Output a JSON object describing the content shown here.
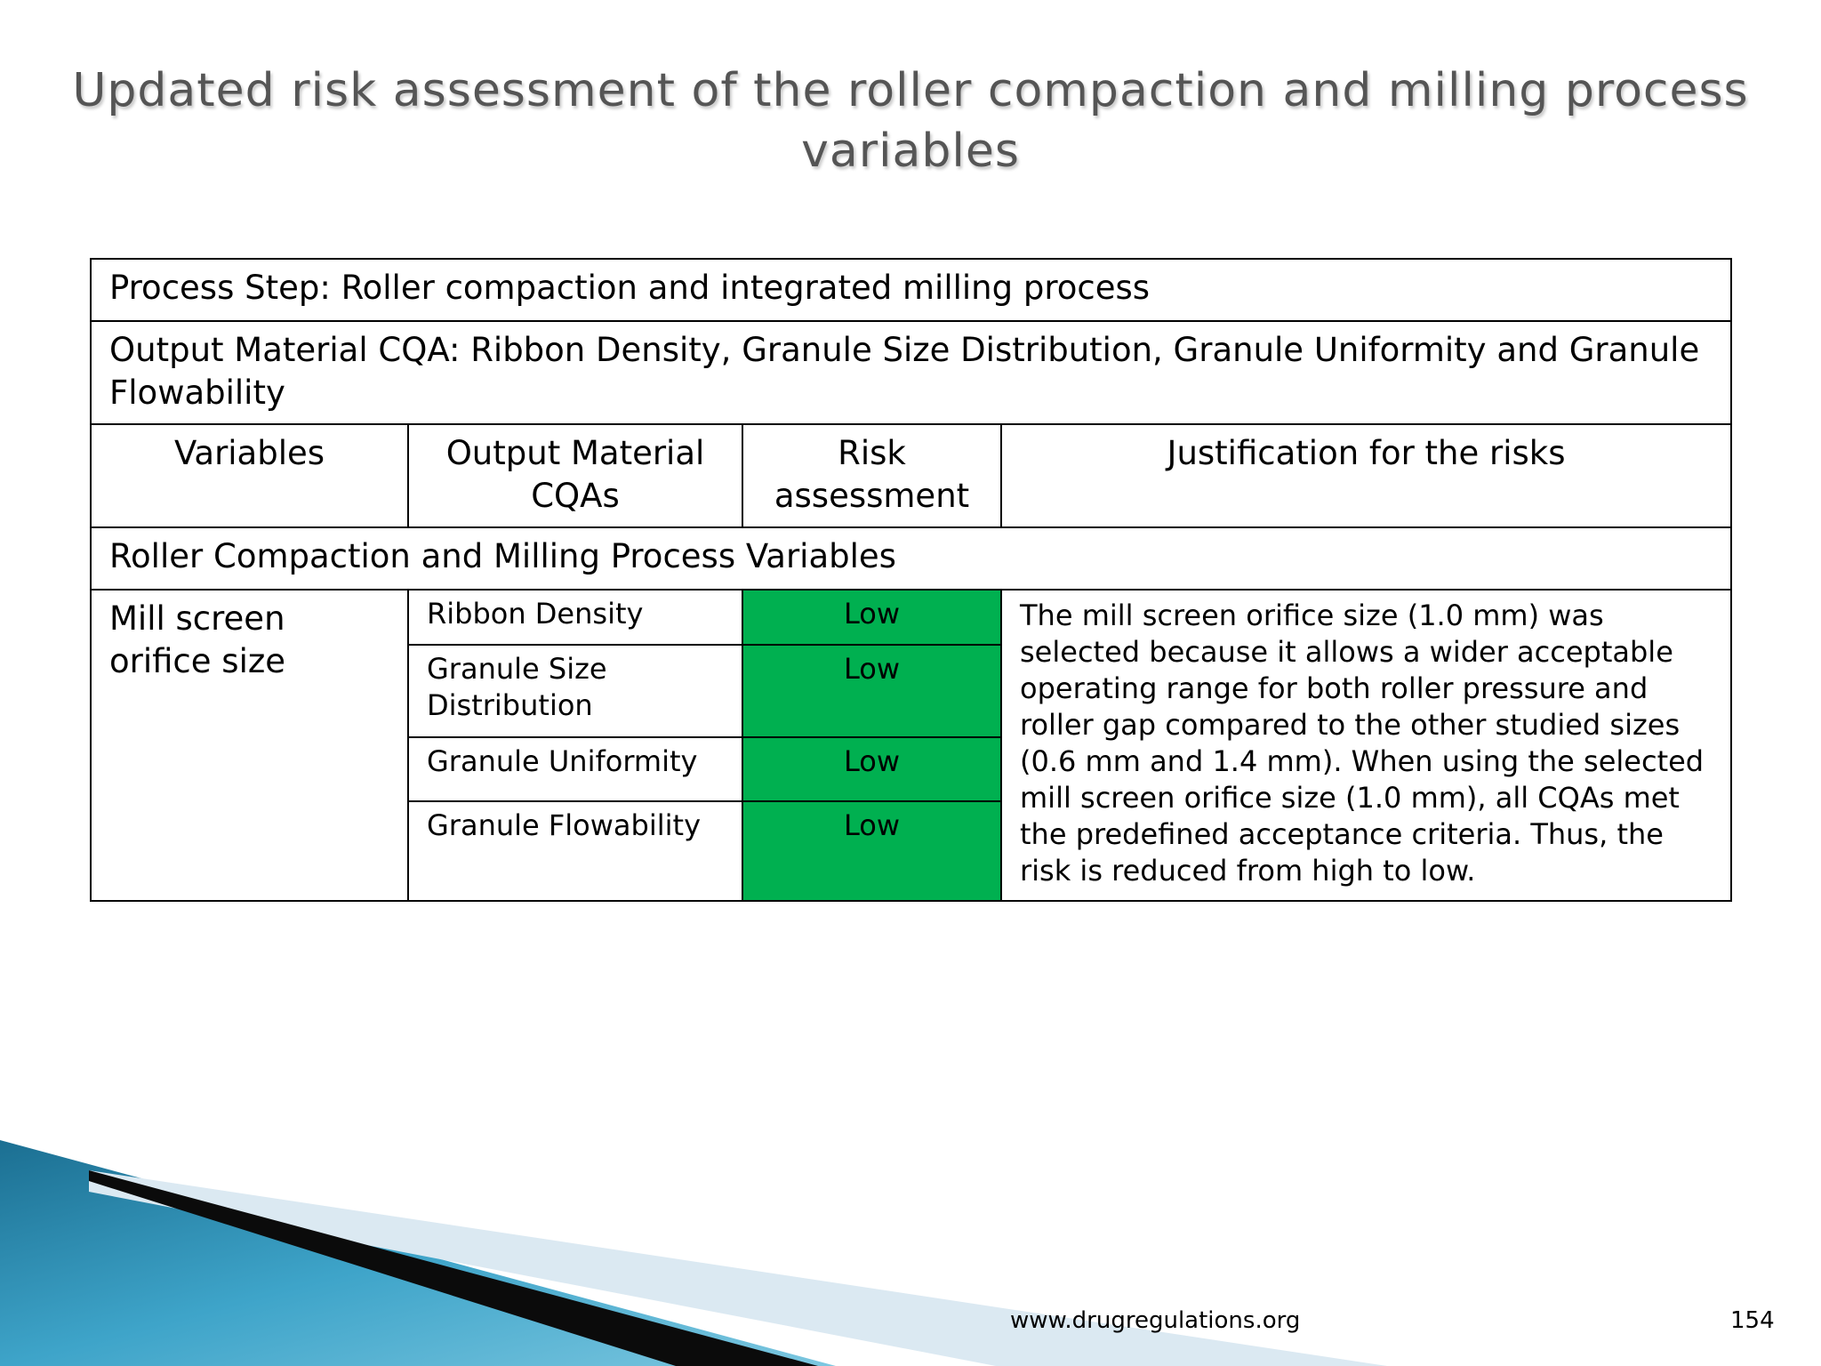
{
  "slide": {
    "title_line1": "Updated risk assessment of the roller compaction and milling process",
    "title_line2": "variables",
    "footer_url": "www.drugregulations.org",
    "page_number": "154"
  },
  "table": {
    "process_step": "Process Step: Roller compaction and integrated milling process",
    "output_cqa": "Output Material CQA: Ribbon Density, Granule Size Distribution, Granule Uniformity and Granule Flowability",
    "headers": [
      "Variables",
      "Output Material CQAs",
      "Risk assessment",
      "Justification for the risks"
    ],
    "section_label": "Roller Compaction and Milling Process Variables",
    "variable": "Mill screen orifice size",
    "rows": [
      {
        "cqa": "Ribbon Density",
        "risk": "Low"
      },
      {
        "cqa": "Granule Size Distribution",
        "risk": "Low"
      },
      {
        "cqa": "Granule Uniformity",
        "risk": "Low"
      },
      {
        "cqa": "Granule Flowability",
        "risk": "Low"
      }
    ],
    "justification": "The mill screen orifice size (1.0 mm) was selected because it allows a wider acceptable operating range for both roller pressure and roller gap compared to the other studied sizes (0.6 mm and 1.4 mm). When using the selected mill screen orifice size (1.0 mm), all CQAs met the predefined acceptance criteria. Thus, the risk is reduced from high to low."
  },
  "colors": {
    "low_risk": "#00b050",
    "title_text": "#555555"
  }
}
